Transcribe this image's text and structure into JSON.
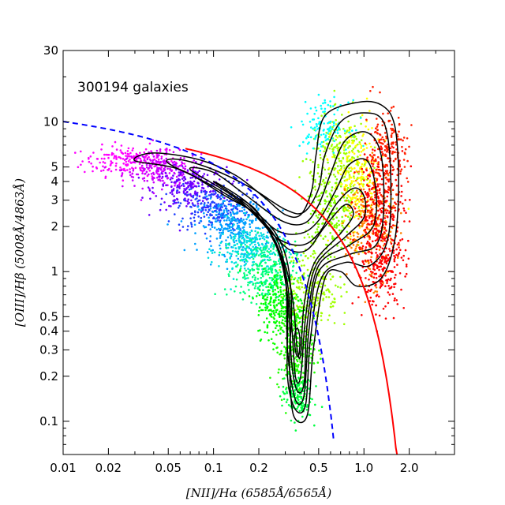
{
  "chart_data": {
    "type": "scatter",
    "annotation": "300194 galaxies",
    "xlabel": "[NII]/Hα (6585Å/6565Å)",
    "ylabel": "[OIII]/Hβ (5008Å/4863Å)",
    "x_scale": "log",
    "y_scale": "log",
    "xlim": [
      0.01,
      4.0
    ],
    "ylim": [
      0.06,
      30
    ],
    "x_ticks": [
      {
        "value": 0.01,
        "label": "0.01"
      },
      {
        "value": 0.02,
        "label": "0.02"
      },
      {
        "value": 0.05,
        "label": "0.05"
      },
      {
        "value": 0.1,
        "label": "0.1"
      },
      {
        "value": 0.2,
        "label": "0.2"
      },
      {
        "value": 0.5,
        "label": "0.5"
      },
      {
        "value": 1.0,
        "label": "1.0"
      },
      {
        "value": 2.0,
        "label": "2.0"
      }
    ],
    "y_ticks": [
      {
        "value": 0.1,
        "label": "0.1"
      },
      {
        "value": 0.2,
        "label": "0.2"
      },
      {
        "value": 0.3,
        "label": "0.3"
      },
      {
        "value": 0.4,
        "label": "0.4"
      },
      {
        "value": 0.5,
        "label": "0.5"
      },
      {
        "value": 1,
        "label": "1"
      },
      {
        "value": 2,
        "label": "2"
      },
      {
        "value": 3,
        "label": "3"
      },
      {
        "value": 4,
        "label": "4"
      },
      {
        "value": 5,
        "label": "5"
      },
      {
        "value": 10,
        "label": "10"
      },
      {
        "value": 30,
        "label": "30"
      }
    ],
    "grid": false,
    "colors": {
      "demarcation_solid": "#ff0000",
      "demarcation_dashed": "#0000ff",
      "contours": "#000000",
      "point_colormap": [
        "#ff00ff",
        "#6a00ff",
        "#0000ff",
        "#00a0ff",
        "#00ffff",
        "#00ff80",
        "#00ff00",
        "#a0ff00",
        "#ffff00",
        "#ff8000",
        "#ff0000"
      ]
    },
    "point_clusters": [
      {
        "x": 0.028,
        "y": 5.5,
        "sx": 0.16,
        "sy": 0.05,
        "n": 200,
        "color": "#ff00ff"
      },
      {
        "x": 0.045,
        "y": 4.8,
        "sx": 0.13,
        "sy": 0.06,
        "n": 200,
        "color": "#cc00ff"
      },
      {
        "x": 0.07,
        "y": 3.6,
        "sx": 0.12,
        "sy": 0.07,
        "n": 220,
        "color": "#6a00ff"
      },
      {
        "x": 0.1,
        "y": 2.7,
        "sx": 0.12,
        "sy": 0.08,
        "n": 240,
        "color": "#2040ff"
      },
      {
        "x": 0.14,
        "y": 2.0,
        "sx": 0.12,
        "sy": 0.09,
        "n": 260,
        "color": "#00a0ff"
      },
      {
        "x": 0.18,
        "y": 1.4,
        "sx": 0.11,
        "sy": 0.09,
        "n": 260,
        "color": "#00e0e0"
      },
      {
        "x": 0.22,
        "y": 1.0,
        "sx": 0.1,
        "sy": 0.1,
        "n": 280,
        "color": "#00ff80"
      },
      {
        "x": 0.28,
        "y": 0.6,
        "sx": 0.08,
        "sy": 0.11,
        "n": 260,
        "color": "#00ff00"
      },
      {
        "x": 0.35,
        "y": 0.3,
        "sx": 0.06,
        "sy": 0.14,
        "n": 260,
        "color": "#20ff00"
      },
      {
        "x": 0.36,
        "y": 0.15,
        "sx": 0.05,
        "sy": 0.08,
        "n": 160,
        "color": "#00ff40"
      },
      {
        "x": 0.45,
        "y": 0.8,
        "sx": 0.09,
        "sy": 0.15,
        "n": 220,
        "color": "#a0ff00"
      },
      {
        "x": 0.6,
        "y": 2.5,
        "sx": 0.08,
        "sy": 0.16,
        "n": 220,
        "color": "#80ff00"
      },
      {
        "x": 0.7,
        "y": 6.0,
        "sx": 0.1,
        "sy": 0.13,
        "n": 220,
        "color": "#a0ff00"
      },
      {
        "x": 0.55,
        "y": 9.5,
        "sx": 0.08,
        "sy": 0.08,
        "n": 120,
        "color": "#00ffff"
      },
      {
        "x": 0.9,
        "y": 4.0,
        "sx": 0.08,
        "sy": 0.2,
        "n": 240,
        "color": "#ffff00"
      },
      {
        "x": 1.1,
        "y": 2.0,
        "sx": 0.08,
        "sy": 0.18,
        "n": 260,
        "color": "#ff8000"
      },
      {
        "x": 1.3,
        "y": 2.5,
        "sx": 0.08,
        "sy": 0.22,
        "n": 340,
        "color": "#ff0000"
      },
      {
        "x": 1.4,
        "y": 6.0,
        "sx": 0.07,
        "sy": 0.15,
        "n": 200,
        "color": "#ff2000"
      },
      {
        "x": 1.3,
        "y": 1.0,
        "sx": 0.08,
        "sy": 0.12,
        "n": 160,
        "color": "#ff0000"
      }
    ],
    "contour_levels": [
      {
        "center_x": 0.36,
        "center_y": 0.3,
        "rx": 0.06,
        "ry": 0.18
      },
      {
        "center_x": 0.38,
        "center_y": 0.35,
        "rx": 0.1,
        "ry": 0.3
      },
      {
        "center_x": 0.4,
        "center_y": 0.45,
        "rx": 0.14,
        "ry": 0.45
      }
    ],
    "curves": [
      {
        "name": "dashed",
        "a": 0.61,
        "b": 0.05,
        "c": 1.3,
        "style": "dashed",
        "x_max": 0.63
      },
      {
        "name": "solid",
        "a": 0.61,
        "b": 0.47,
        "c": 1.19,
        "style": "solid",
        "x_min": 0.065,
        "x_max": 2.2
      }
    ]
  }
}
